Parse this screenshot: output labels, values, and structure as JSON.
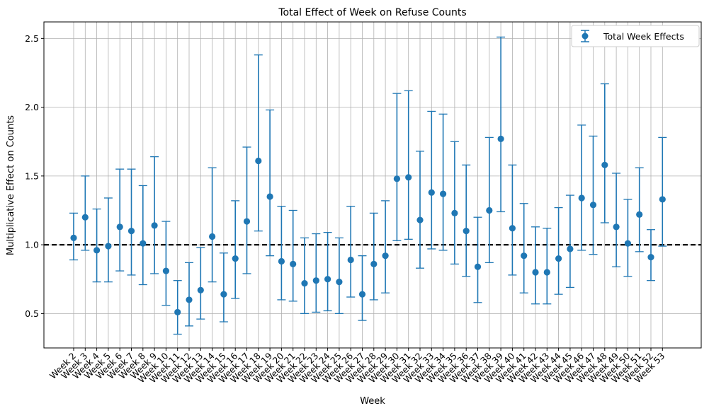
{
  "chart_data": {
    "type": "scatter",
    "title": "Total Effect of Week on Refuse Counts",
    "xlabel": "Week",
    "ylabel": "Multiplicative Effect on Counts",
    "ylim": [
      0.25,
      2.62
    ],
    "yticks": [
      0.5,
      1.0,
      1.5,
      2.0,
      2.5
    ],
    "ytick_labels": [
      "0.5",
      "1.0",
      "1.5",
      "2.0",
      "2.5"
    ],
    "grid": true,
    "legend_position": "top-right",
    "reference_line": {
      "y": 1.0,
      "style": "dashed",
      "color": "#000000"
    },
    "series": [
      {
        "name": "Total Week Effects",
        "color": "#1f77b4",
        "categories": [
          "Week 2",
          "Week 3",
          "Week 4",
          "Week 5",
          "Week 6",
          "Week 7",
          "Week 8",
          "Week 9",
          "Week 10",
          "Week 11",
          "Week 12",
          "Week 13",
          "Week 14",
          "Week 15",
          "Week 16",
          "Week 17",
          "Week 18",
          "Week 19",
          "Week 20",
          "Week 21",
          "Week 22",
          "Week 23",
          "Week 24",
          "Week 25",
          "Week 26",
          "Week 27",
          "Week 28",
          "Week 29",
          "Week 30",
          "Week 31",
          "Week 32",
          "Week 33",
          "Week 34",
          "Week 35",
          "Week 36",
          "Week 37",
          "Week 38",
          "Week 39",
          "Week 40",
          "Week 41",
          "Week 42",
          "Week 43",
          "Week 44",
          "Week 45",
          "Week 46",
          "Week 47",
          "Week 48",
          "Week 49",
          "Week 50",
          "Week 51",
          "Week 52",
          "Week 53"
        ],
        "values": [
          1.05,
          1.2,
          0.96,
          0.99,
          1.13,
          1.1,
          1.01,
          1.14,
          0.81,
          0.51,
          0.6,
          0.67,
          1.06,
          0.64,
          0.9,
          1.17,
          1.61,
          1.35,
          0.88,
          0.86,
          0.72,
          0.74,
          0.75,
          0.73,
          0.89,
          0.64,
          0.86,
          0.92,
          1.48,
          1.49,
          1.18,
          1.38,
          1.37,
          1.23,
          1.1,
          0.84,
          1.25,
          1.77,
          1.12,
          0.92,
          0.8,
          0.8,
          0.9,
          0.97,
          1.34,
          1.29,
          1.58,
          1.13,
          1.01,
          1.22,
          0.91,
          1.33
        ],
        "lower": [
          0.89,
          0.96,
          0.73,
          0.73,
          0.81,
          0.78,
          0.71,
          0.79,
          0.56,
          0.35,
          0.41,
          0.46,
          0.73,
          0.44,
          0.61,
          0.79,
          1.1,
          0.92,
          0.6,
          0.59,
          0.5,
          0.51,
          0.52,
          0.5,
          0.62,
          0.45,
          0.6,
          0.65,
          1.03,
          1.04,
          0.83,
          0.97,
          0.96,
          0.86,
          0.77,
          0.58,
          0.87,
          1.24,
          0.78,
          0.65,
          0.57,
          0.57,
          0.64,
          0.69,
          0.96,
          0.93,
          1.16,
          0.84,
          0.77,
          0.95,
          0.74,
          0.99
        ],
        "upper": [
          1.23,
          1.5,
          1.26,
          1.34,
          1.55,
          1.55,
          1.43,
          1.64,
          1.17,
          0.74,
          0.87,
          0.98,
          1.56,
          0.94,
          1.32,
          1.71,
          2.38,
          1.98,
          1.28,
          1.25,
          1.05,
          1.08,
          1.09,
          1.05,
          1.28,
          0.92,
          1.23,
          1.32,
          2.1,
          2.12,
          1.68,
          1.97,
          1.95,
          1.75,
          1.58,
          1.2,
          1.78,
          2.51,
          1.58,
          1.3,
          1.13,
          1.12,
          1.27,
          1.36,
          1.87,
          1.79,
          2.17,
          1.52,
          1.33,
          1.56,
          1.11,
          1.78
        ]
      }
    ]
  }
}
